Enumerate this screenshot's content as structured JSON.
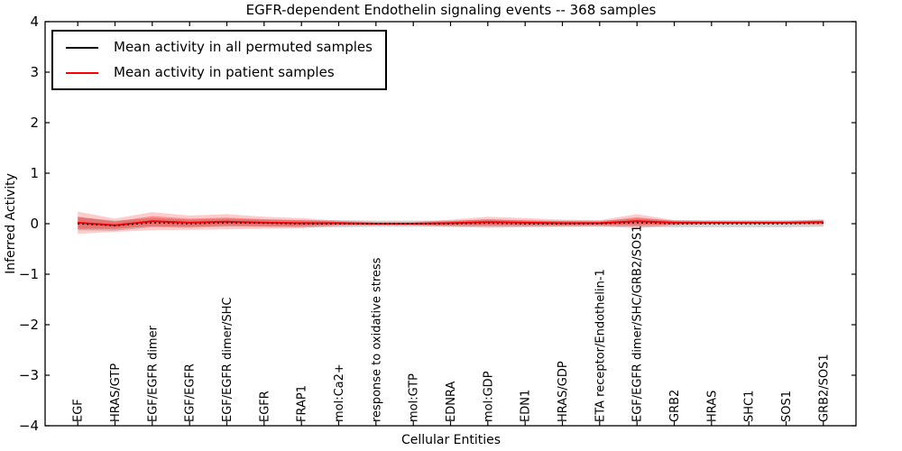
{
  "chart_data": {
    "type": "line",
    "title": "EGFR-dependent Endothelin signaling events -- 368 samples",
    "xlabel": "Cellular Entities",
    "ylabel": "Inferred Activity",
    "ylim": [
      -4,
      4
    ],
    "xlim": [
      -0.875,
      20.875
    ],
    "grid": false,
    "yticks": [
      -4,
      -3,
      -2,
      -1,
      0,
      1,
      2,
      3,
      4
    ],
    "ytick_labels": [
      "−4",
      "−3",
      "−2",
      "−1",
      "0",
      "1",
      "2",
      "3",
      "4"
    ],
    "categories": [
      "EGF",
      "HRAS/GTP",
      "EGF/EGFR dimer",
      "EGF/EGFR",
      "EGF/EGFR dimer/SHC",
      "EGFR",
      "FRAP1",
      "mol:Ca2+",
      "response to oxidative stress",
      "mol:GTP",
      "EDNRA",
      "mol:GDP",
      "EDN1",
      "HRAS/GDP",
      "ETA receptor/Endothelin-1",
      "EGF/EGFR dimer/SHC/GRB2/SOS1",
      "GRB2",
      "HRAS",
      "SHC1",
      "SOS1",
      "GRB2/SOS1"
    ],
    "legend": {
      "position": "upper left",
      "entries": [
        {
          "label": "Mean activity in all permuted samples",
          "color": "#000000"
        },
        {
          "label": "Mean activity in patient samples",
          "color": "#ff0000"
        }
      ]
    },
    "series": [
      {
        "name": "Mean activity in all permuted samples",
        "color": "#000000",
        "line_style": "dotted",
        "values": [
          0.0,
          -0.04,
          0.02,
          0.0,
          0.02,
          0.01,
          0.0,
          0.0,
          0.0,
          0.0,
          0.0,
          0.01,
          0.0,
          0.0,
          0.0,
          0.02,
          0.0,
          0.0,
          0.0,
          0.0,
          0.01
        ]
      },
      {
        "name": "Mean activity in patient samples",
        "color": "#ff0000",
        "line_style": "solid",
        "values": [
          0.02,
          -0.03,
          0.05,
          0.02,
          0.04,
          0.02,
          0.01,
          0.01,
          0.0,
          0.0,
          0.01,
          0.03,
          0.02,
          0.01,
          0.01,
          0.05,
          0.02,
          0.02,
          0.02,
          0.02,
          0.03
        ]
      }
    ],
    "bands": [
      {
        "name": "permuted samples spread",
        "color": "#999999",
        "opacity": 0.45,
        "center_series": 0,
        "half_widths": [
          0.13,
          0.1,
          0.09,
          0.08,
          0.08,
          0.07,
          0.07,
          0.07,
          0.06,
          0.06,
          0.06,
          0.07,
          0.06,
          0.06,
          0.06,
          0.08,
          0.07,
          0.07,
          0.07,
          0.07,
          0.07
        ]
      },
      {
        "name": "patient samples spread outer",
        "color": "#ff0000",
        "opacity": 0.2,
        "center_series": 1,
        "half_widths": [
          0.22,
          0.13,
          0.18,
          0.14,
          0.15,
          0.12,
          0.1,
          0.05,
          0.03,
          0.03,
          0.07,
          0.11,
          0.09,
          0.07,
          0.06,
          0.14,
          0.05,
          0.03,
          0.03,
          0.03,
          0.05
        ]
      },
      {
        "name": "patient samples spread inner",
        "color": "#ff0000",
        "opacity": 0.3,
        "center_series": 1,
        "half_widths": [
          0.12,
          0.07,
          0.1,
          0.08,
          0.08,
          0.07,
          0.06,
          0.03,
          0.02,
          0.02,
          0.04,
          0.06,
          0.05,
          0.04,
          0.03,
          0.08,
          0.03,
          0.02,
          0.02,
          0.02,
          0.03
        ]
      }
    ]
  }
}
